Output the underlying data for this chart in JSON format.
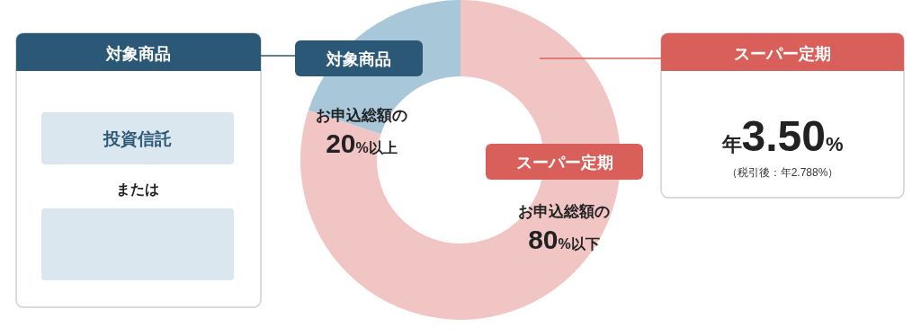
{
  "chart_data": [
    {
      "type": "other",
      "title": "対象商品",
      "color": "#2b5876",
      "annotations": [
        "投資信託",
        "または"
      ]
    },
    {
      "type": "donut",
      "categories": [
        "対象商品",
        "スーパー定期"
      ],
      "values": [
        20,
        80
      ],
      "colors": [
        "#a8c8da",
        "#f2c5c5"
      ],
      "value_labels": [
        "お申込総額の\n20%以上",
        "お申込総額の\n80%以下"
      ]
    },
    {
      "type": "other",
      "title": "スーパー定期",
      "color": "#d9605a",
      "annotations": [
        "年3.50%",
        "（税引後：年2.788%）"
      ]
    }
  ]
}
